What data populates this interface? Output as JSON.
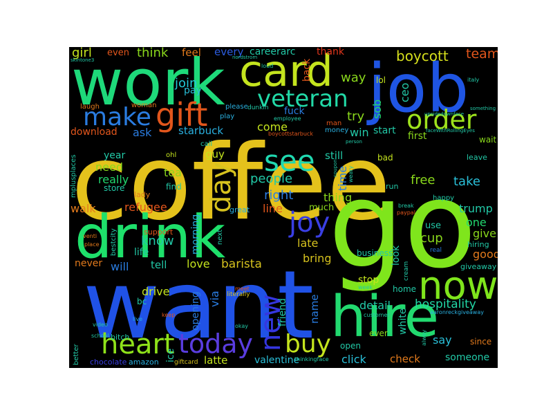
{
  "words": [
    {
      "text": "coffee",
      "color": "#e4c21c"
    },
    {
      "text": "want",
      "color": "#2052e6"
    },
    {
      "text": "go",
      "color": "#7fe51c"
    },
    {
      "text": "work",
      "color": "#1ed97a"
    },
    {
      "text": "drink",
      "color": "#1ee06b"
    },
    {
      "text": "job",
      "color": "#1f55e3"
    },
    {
      "text": "card",
      "color": "#c4e41e"
    },
    {
      "text": "hire",
      "color": "#22d96f"
    },
    {
      "text": "now",
      "color": "#7fe51c"
    },
    {
      "text": "heart",
      "color": "#8fe21a"
    },
    {
      "text": "gift",
      "color": "#e2561c"
    },
    {
      "text": "make",
      "color": "#2a7ce0"
    },
    {
      "text": "veteran",
      "color": "#22d9a7"
    },
    {
      "text": "order",
      "color": "#9ee21c"
    },
    {
      "text": "see",
      "color": "#20d8b0"
    },
    {
      "text": "day",
      "color": "#d6c21e"
    },
    {
      "text": "joy",
      "color": "#3a3fe4"
    },
    {
      "text": "today",
      "color": "#5a3de0"
    },
    {
      "text": "new",
      "color": "#3536e0"
    },
    {
      "text": "buy",
      "color": "#c4e41e"
    },
    {
      "text": "boycott",
      "color": "#d6df1c"
    },
    {
      "text": "team",
      "color": "#e2561c"
    },
    {
      "text": "think",
      "color": "#8ad81c"
    },
    {
      "text": "girl",
      "color": "#c4e41e"
    },
    {
      "text": "even",
      "color": "#e2561c"
    },
    {
      "text": "feel",
      "color": "#e27a1c"
    },
    {
      "text": "every",
      "color": "#2b5ce0"
    },
    {
      "text": "careerarc",
      "color": "#22c9a7"
    },
    {
      "text": "thank",
      "color": "#e2361c"
    },
    {
      "text": "join",
      "color": "#22c9d9"
    },
    {
      "text": "pay",
      "color": "#2ac0d9"
    },
    {
      "text": "way",
      "color": "#8ad81c"
    },
    {
      "text": "ceo",
      "color": "#22c9a7"
    },
    {
      "text": "sob",
      "color": "#22d96f"
    },
    {
      "text": "lol",
      "color": "#c4e41e"
    },
    {
      "text": "back",
      "color": "#e2561c"
    },
    {
      "text": "ask",
      "color": "#2a7ce0"
    },
    {
      "text": "download",
      "color": "#e2561c"
    },
    {
      "text": "starbuck",
      "color": "#2ab0e0"
    },
    {
      "text": "fuck",
      "color": "#2a7ce0"
    },
    {
      "text": "come",
      "color": "#c4e41e"
    },
    {
      "text": "try",
      "color": "#8ad81c"
    },
    {
      "text": "win",
      "color": "#22c9a7"
    },
    {
      "text": "start",
      "color": "#22c9a7"
    },
    {
      "text": "first",
      "color": "#8ad81c"
    },
    {
      "text": "wait",
      "color": "#8ad81c"
    },
    {
      "text": "need",
      "color": "#8ad81c"
    },
    {
      "text": "year",
      "color": "#22c9a7"
    },
    {
      "text": "really",
      "color": "#22d96f"
    },
    {
      "text": "guy",
      "color": "#c4e41e"
    },
    {
      "text": "tea",
      "color": "#8ad81c"
    },
    {
      "text": "people",
      "color": "#22c9a7"
    },
    {
      "text": "time",
      "color": "#2a7ce0"
    },
    {
      "text": "still",
      "color": "#22c9a7"
    },
    {
      "text": "free",
      "color": "#8ad81c"
    },
    {
      "text": "take",
      "color": "#2ac0d9"
    },
    {
      "text": "leave",
      "color": "#22c9a7"
    },
    {
      "text": "store",
      "color": "#22c9a7"
    },
    {
      "text": "find",
      "color": "#22c9a7"
    },
    {
      "text": "right",
      "color": "#2a7ce0"
    },
    {
      "text": "thing",
      "color": "#8ad81c"
    },
    {
      "text": "walk",
      "color": "#e27a1c"
    },
    {
      "text": "refugee",
      "color": "#e2561c"
    },
    {
      "text": "morning",
      "color": "#2ab0e0"
    },
    {
      "text": "line",
      "color": "#e2561c"
    },
    {
      "text": "much",
      "color": "#8ad81c"
    },
    {
      "text": "trump",
      "color": "#22c9a7"
    },
    {
      "text": "one",
      "color": "#22d96f"
    },
    {
      "text": "give",
      "color": "#8ad81c"
    },
    {
      "text": "cup",
      "color": "#8ad81c"
    },
    {
      "text": "know",
      "color": "#22c9a7"
    },
    {
      "text": "support",
      "color": "#e2561c"
    },
    {
      "text": "life",
      "color": "#22c9a7"
    },
    {
      "text": "late",
      "color": "#d6c21e"
    },
    {
      "text": "look",
      "color": "#22c9a7"
    },
    {
      "text": "use",
      "color": "#22c9a7"
    },
    {
      "text": "hiring",
      "color": "#22c9a7"
    },
    {
      "text": "never",
      "color": "#e27a1c"
    },
    {
      "text": "will",
      "color": "#2a7ce0"
    },
    {
      "text": "tell",
      "color": "#22c9a7"
    },
    {
      "text": "love",
      "color": "#c4e41e"
    },
    {
      "text": "barista",
      "color": "#d6c21e"
    },
    {
      "text": "bring",
      "color": "#d6c21e"
    },
    {
      "text": "business",
      "color": "#22c9a7"
    },
    {
      "text": "good",
      "color": "#e27a1c"
    },
    {
      "text": "giveaway",
      "color": "#22c9a7"
    },
    {
      "text": "drive",
      "color": "#c4e41e"
    },
    {
      "text": "opening",
      "color": "#2a7ce0"
    },
    {
      "text": "via",
      "color": "#2a7ce0"
    },
    {
      "text": "friend",
      "color": "#22c9a7"
    },
    {
      "text": "name",
      "color": "#2a7ce0"
    },
    {
      "text": "detail",
      "color": "#22c9a7"
    },
    {
      "text": "stop",
      "color": "#c4e41e"
    },
    {
      "text": "hospitality",
      "color": "#22d9a7"
    },
    {
      "text": "home",
      "color": "#22c9a7"
    },
    {
      "text": "white",
      "color": "#22c9a7"
    },
    {
      "text": "say",
      "color": "#2ac0d9"
    },
    {
      "text": "since",
      "color": "#e27a1c"
    },
    {
      "text": "someone",
      "color": "#22c9a7"
    },
    {
      "text": "ever",
      "color": "#8ad81c"
    },
    {
      "text": "open",
      "color": "#22c9a7"
    },
    {
      "text": "click",
      "color": "#2ac0d9"
    },
    {
      "text": "check",
      "color": "#e27a1c"
    },
    {
      "text": "valentine",
      "color": "#2ac0d9"
    },
    {
      "text": "latte",
      "color": "#c4e41e"
    },
    {
      "text": "ice",
      "color": "#22c9a7"
    },
    {
      "text": "bc",
      "color": "#22c9a7"
    },
    {
      "text": "bitch",
      "color": "#22c9a7"
    },
    {
      "text": "chocolate",
      "color": "#3a3fe4"
    },
    {
      "text": "amazon",
      "color": "#2ab0e0"
    },
    {
      "text": "giftcard",
      "color": "#d6c21e"
    },
    {
      "text": "better",
      "color": "#22c9a7"
    },
    {
      "text": "laugh",
      "color": "#e27a1c"
    },
    {
      "text": "woman",
      "color": "#e27a1c"
    },
    {
      "text": "please",
      "color": "#2ab0e0"
    },
    {
      "text": "play",
      "color": "#2ab0e0"
    },
    {
      "text": "bad",
      "color": "#c4e41e"
    },
    {
      "text": "run",
      "color": "#22c9a7"
    },
    {
      "text": "lady",
      "color": "#e27a1c"
    },
    {
      "text": "great",
      "color": "#2ab0e0"
    },
    {
      "text": "ohl",
      "color": "#c4e41e"
    },
    {
      "text": "call",
      "color": "#22c9a7"
    },
    {
      "text": "money",
      "color": "#2ab0e0"
    },
    {
      "text": "man",
      "color": "#e2561c"
    },
    {
      "text": "happy",
      "color": "#22c9a7"
    },
    {
      "text": "real",
      "color": "#2a7ce0"
    },
    {
      "text": "next",
      "color": "#22c9a7"
    },
    {
      "text": "loud",
      "color": "#22c9a7"
    },
    {
      "text": "dunkin",
      "color": "#22c9a7"
    },
    {
      "text": "employee",
      "color": "#22c9a7"
    },
    {
      "text": "boycottstarbuck",
      "color": "#e2561c"
    },
    {
      "text": "mplusplaces",
      "color": "#22c9a7"
    },
    {
      "text": "bestcity",
      "color": "#22c9a7"
    },
    {
      "text": "venti",
      "color": "#e27a1c"
    },
    {
      "text": "place",
      "color": "#e27a1c"
    },
    {
      "text": "video",
      "color": "#22c9a7"
    },
    {
      "text": "school",
      "color": "#22c9a7"
    },
    {
      "text": "keep",
      "color": "#e2561c"
    },
    {
      "text": "live",
      "color": "#2ab0e0"
    },
    {
      "text": "okay",
      "color": "#22c9a7"
    },
    {
      "text": "meet",
      "color": "#e2561c"
    },
    {
      "text": "literally",
      "color": "#d6c21e"
    },
    {
      "text": "cream",
      "color": "#22c9a7"
    },
    {
      "text": "alway",
      "color": "#22c9a7"
    },
    {
      "text": "aaronreckgiveaway",
      "color": "#2ab0e0"
    },
    {
      "text": "thinkingface",
      "color": "#22c9a7"
    },
    {
      "text": "customer",
      "color": "#22c9a7"
    },
    {
      "text": "week",
      "color": "#22c9a7"
    },
    {
      "text": "faceWithRollingEyes",
      "color": "#22c9a7"
    },
    {
      "text": "upsidedownface",
      "color": "#22c9a7"
    },
    {
      "text": "something",
      "color": "#22c9a7"
    },
    {
      "text": "italy",
      "color": "#22c9a7"
    },
    {
      "text": "nordstrom",
      "color": "#22c9a7"
    },
    {
      "text": "skintone3",
      "color": "#22c9a7"
    },
    {
      "text": "paypal",
      "color": "#e2561c"
    },
    {
      "text": "break",
      "color": "#22c9a7"
    },
    {
      "text": "weary",
      "color": "#22c9a7"
    },
    {
      "text": "coupon",
      "color": "#22c9a7"
    },
    {
      "text": "person",
      "color": "#22c9a7"
    }
  ]
}
